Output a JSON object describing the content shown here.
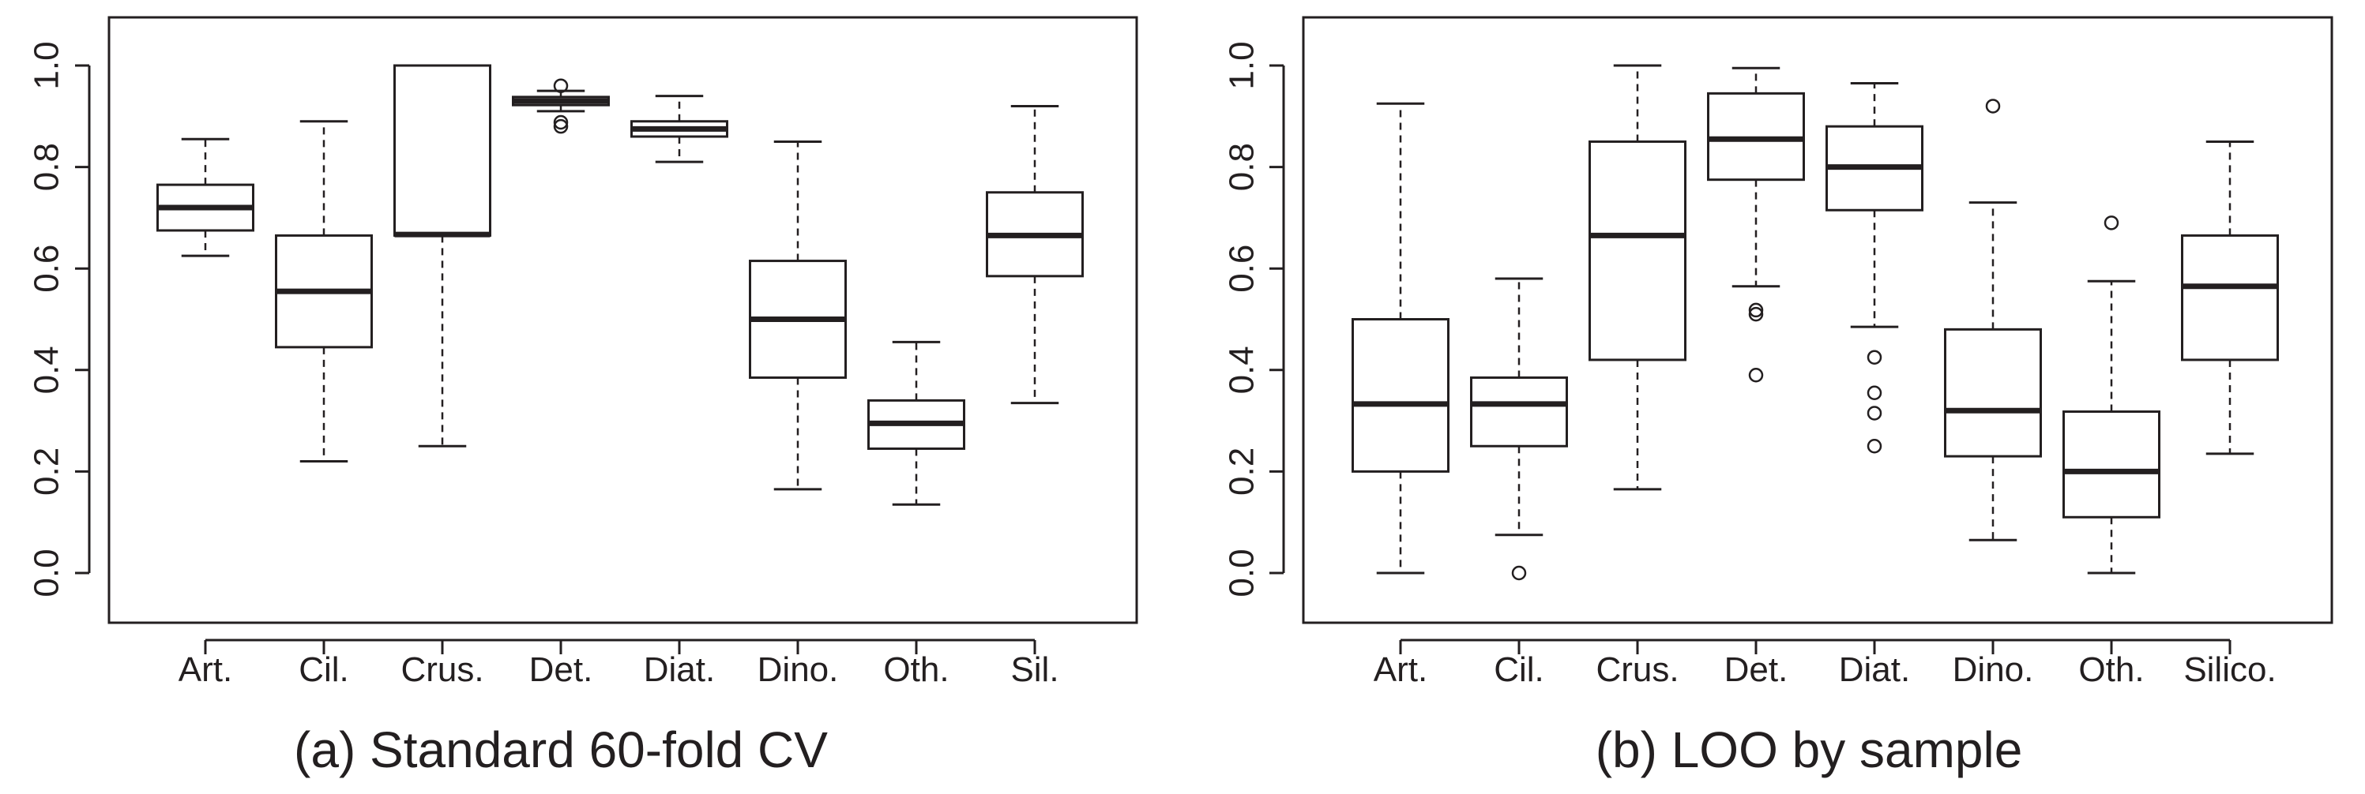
{
  "chart_data": [
    {
      "type": "box",
      "caption": "(a) Standard 60-fold CV",
      "ylim": [
        -0.09,
        1.09
      ],
      "y_ticks": [
        "0.0",
        "0.2",
        "0.4",
        "0.6",
        "0.8",
        "1.0"
      ],
      "y_tick_values": [
        0.0,
        0.2,
        0.4,
        0.6,
        0.8,
        1.0
      ],
      "categories": [
        "Art.",
        "Cil.",
        "Crus.",
        "Det.",
        "Diat.",
        "Dino.",
        "Oth.",
        "Sil."
      ],
      "boxes": [
        {
          "whisker_low": 0.625,
          "q1": 0.675,
          "median": 0.72,
          "q3": 0.765,
          "whisker_high": 0.855,
          "outliers": []
        },
        {
          "whisker_low": 0.22,
          "q1": 0.445,
          "median": 0.555,
          "q3": 0.665,
          "whisker_high": 0.89,
          "outliers": []
        },
        {
          "whisker_low": 0.25,
          "q1": 0.665,
          "median": 0.667,
          "q3": 1.0,
          "whisker_high": 1.0,
          "outliers": []
        },
        {
          "whisker_low": 0.91,
          "q1": 0.922,
          "median": 0.93,
          "q3": 0.938,
          "whisker_high": 0.95,
          "outliers": [
            0.96,
            0.888,
            0.88
          ]
        },
        {
          "whisker_low": 0.81,
          "q1": 0.86,
          "median": 0.875,
          "q3": 0.89,
          "whisker_high": 0.94,
          "outliers": []
        },
        {
          "whisker_low": 0.165,
          "q1": 0.385,
          "median": 0.5,
          "q3": 0.615,
          "whisker_high": 0.85,
          "outliers": []
        },
        {
          "whisker_low": 0.135,
          "q1": 0.245,
          "median": 0.295,
          "q3": 0.34,
          "whisker_high": 0.455,
          "outliers": []
        },
        {
          "whisker_low": 0.335,
          "q1": 0.585,
          "median": 0.665,
          "q3": 0.75,
          "whisker_high": 0.92,
          "outliers": []
        }
      ]
    },
    {
      "type": "box",
      "caption": "(b) LOO by sample",
      "ylim": [
        -0.09,
        1.09
      ],
      "y_ticks": [
        "0.0",
        "0.2",
        "0.4",
        "0.6",
        "0.8",
        "1.0"
      ],
      "y_tick_values": [
        0.0,
        0.2,
        0.4,
        0.6,
        0.8,
        1.0
      ],
      "categories": [
        "Art.",
        "Cil.",
        "Crus.",
        "Det.",
        "Diat.",
        "Dino.",
        "Oth.",
        "Silico."
      ],
      "boxes": [
        {
          "whisker_low": 0.0,
          "q1": 0.2,
          "median": 0.333,
          "q3": 0.5,
          "whisker_high": 0.925,
          "outliers": []
        },
        {
          "whisker_low": 0.075,
          "q1": 0.25,
          "median": 0.333,
          "q3": 0.385,
          "whisker_high": 0.58,
          "outliers": [
            0.0
          ]
        },
        {
          "whisker_low": 0.165,
          "q1": 0.42,
          "median": 0.665,
          "q3": 0.85,
          "whisker_high": 1.0,
          "outliers": []
        },
        {
          "whisker_low": 0.565,
          "q1": 0.775,
          "median": 0.855,
          "q3": 0.945,
          "whisker_high": 0.995,
          "outliers": [
            0.518,
            0.51,
            0.39
          ]
        },
        {
          "whisker_low": 0.485,
          "q1": 0.715,
          "median": 0.8,
          "q3": 0.88,
          "whisker_high": 0.965,
          "outliers": [
            0.425,
            0.355,
            0.315,
            0.25
          ]
        },
        {
          "whisker_low": 0.065,
          "q1": 0.23,
          "median": 0.32,
          "q3": 0.48,
          "whisker_high": 0.73,
          "outliers": [
            0.92
          ]
        },
        {
          "whisker_low": 0.0,
          "q1": 0.11,
          "median": 0.2,
          "q3": 0.318,
          "whisker_high": 0.575,
          "outliers": [
            0.69
          ]
        },
        {
          "whisker_low": 0.235,
          "q1": 0.42,
          "median": 0.565,
          "q3": 0.665,
          "whisker_high": 0.85,
          "outliers": []
        }
      ]
    }
  ]
}
